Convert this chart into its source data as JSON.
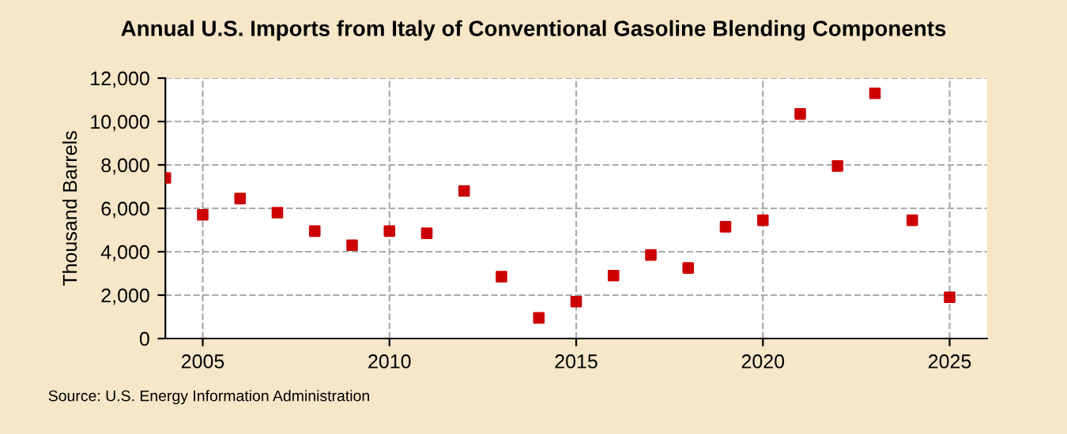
{
  "chart_data": {
    "type": "scatter",
    "title": "Annual U.S. Imports from Italy of Conventional Gasoline Blending Components",
    "ylabel": "Thousand Barrels",
    "x": [
      2004,
      2005,
      2006,
      2007,
      2008,
      2009,
      2010,
      2011,
      2012,
      2013,
      2014,
      2015,
      2016,
      2017,
      2018,
      2019,
      2020,
      2021,
      2022,
      2023,
      2024,
      2025
    ],
    "series": [
      {
        "color": "#cc0000",
        "values": [
          7400,
          5700,
          6450,
          5800,
          4950,
          4300,
          4950,
          4850,
          6800,
          2850,
          950,
          1700,
          2900,
          3850,
          3250,
          5150,
          5450,
          10350,
          7950,
          11300,
          5450,
          1900
        ]
      }
    ],
    "xlim": [
      2004,
      2026
    ],
    "xticks": [
      2005,
      2010,
      2015,
      2020,
      2025
    ],
    "ylim": [
      0,
      12000
    ],
    "yticks": [
      {
        "value": 0,
        "label": "0"
      },
      {
        "value": 2000,
        "label": "2,000"
      },
      {
        "value": 4000,
        "label": "4,000"
      },
      {
        "value": 6000,
        "label": "6,000"
      },
      {
        "value": 8000,
        "label": "8,000"
      },
      {
        "value": 10000,
        "label": "10,000"
      },
      {
        "value": 12000,
        "label": "12,000"
      }
    ],
    "grid": true,
    "marker": "square",
    "annotations": [
      "Source: U.S. Energy Information Administration"
    ]
  }
}
